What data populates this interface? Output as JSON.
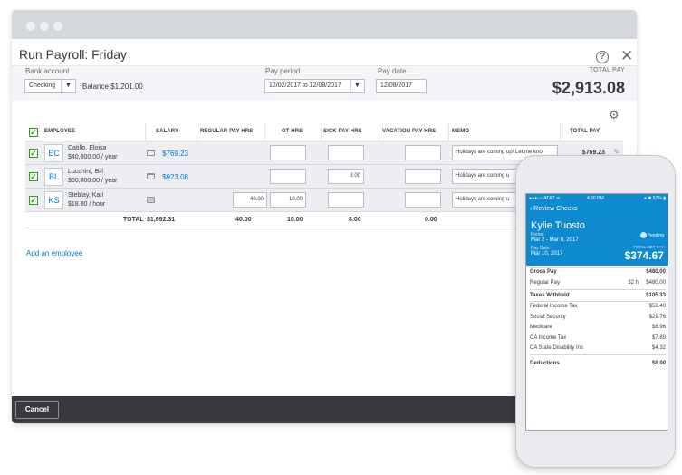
{
  "dialog": {
    "title": "Run Payroll: Friday",
    "help_glyph": "?",
    "close_glyph": "✕"
  },
  "top": {
    "bank_account_label": "Bank account",
    "bank_account_value": "Checking",
    "balance": "Balance $1,201.00",
    "pay_period_label": "Pay period",
    "pay_period_value": "12/02/2017 to 12/08/2017",
    "pay_date_label": "Pay date",
    "pay_date_value": "12/08/2017",
    "total_pay_label": "TOTAL PAY",
    "total_pay_value": "$2,913.08"
  },
  "table": {
    "headers": {
      "employee": "EMPLOYEE",
      "salary": "SALARY",
      "regular": "REGULAR PAY HRS",
      "ot": "OT HRS",
      "sick": "SICK PAY HRS",
      "vacation": "VACATION PAY HRS",
      "memo": "MEMO",
      "total": "TOTAL PAY"
    },
    "rows": [
      {
        "initials": "EC",
        "name": "Catillo, Eloisa",
        "rate": "$40,000.00 / year",
        "salary": "$769.23",
        "regular": "",
        "ot": "",
        "sick": "",
        "vacation": "",
        "memo": "Holidays are coming up! Let me kno",
        "total": "$769.23"
      },
      {
        "initials": "BL",
        "name": "Lucchini, Bill",
        "rate": "$60,000.00 / year",
        "salary": "$923.08",
        "regular": "",
        "ot": "",
        "sick": "8.00",
        "vacation": "",
        "memo": "Holidays are coming u",
        "total": ""
      },
      {
        "initials": "KS",
        "name": "Steblay, Kari",
        "rate": "$18.00 / hour",
        "salary": "",
        "regular": "40.00",
        "ot": "10.00",
        "sick": "",
        "vacation": "",
        "memo": "Holidays are coming u",
        "total": ""
      }
    ],
    "totals": {
      "label": "TOTAL",
      "salary": "$1,692.31",
      "regular": "40.00",
      "ot": "10.00",
      "sick": "8.00",
      "vacation": "0.00"
    },
    "add_employee": "Add an employee",
    "check_glyph": "✓",
    "gear_glyph": "⚙"
  },
  "footer": {
    "cancel_label": "Cancel"
  },
  "phone": {
    "carrier": "●●●○○ AT&T ᯤ",
    "time": "4:20 PM",
    "battery": "● ✱ 57% ▮",
    "back_label": "‹ Review Checks",
    "employee_name": "Kylie Tuosto",
    "period_label": "Period",
    "period_value": "Mar 2 - Mar 8, 2017",
    "pay_date_label": "Pay Date",
    "pay_date_value": "Mar 10, 2017",
    "status": "Pending",
    "net_pay_label": "TOTAL NET PAY",
    "net_pay_value": "$374.67",
    "gross_pay_label": "Gross Pay",
    "gross_pay_value": "$480.00",
    "regular_pay_label": "Regular Pay",
    "regular_pay_hours": "32 h",
    "regular_pay_value": "$480.00",
    "taxes_label": "Taxes Withheld",
    "taxes_value": "$105.33",
    "taxes": [
      {
        "label": "Federal Income Tax",
        "value": "$56.40"
      },
      {
        "label": "Social Security",
        "value": "$29.76"
      },
      {
        "label": "Medicare",
        "value": "$6.96"
      },
      {
        "label": "CA Income Tax",
        "value": "$7.89"
      },
      {
        "label": "CA State Disability Ins",
        "value": "$4.32"
      }
    ],
    "deductions_label": "Deductions",
    "deductions_value": "$0.00"
  }
}
